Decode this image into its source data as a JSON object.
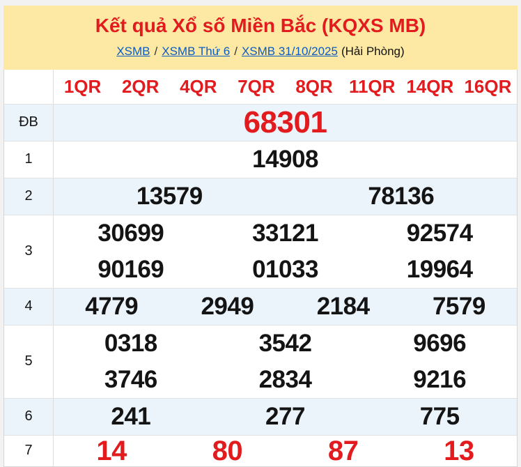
{
  "colors": {
    "accent_red": "#E21B1E",
    "header_bg": "#FDE9A4",
    "row_highlight": "#EBF3FB",
    "link_blue": "#0B5BC4"
  },
  "header": {
    "title": "Kết quả Xổ số Miền Bắc (KQXS MB)",
    "separator": "/",
    "breadcrumb": [
      {
        "label": "XSMB"
      },
      {
        "label": "XSMB Thứ 6"
      },
      {
        "label": "XSMB 31/10/2025"
      }
    ],
    "region_note": "(Hải Phòng)"
  },
  "table": {
    "column_headers": [
      "1QR",
      "2QR",
      "4QR",
      "7QR",
      "8QR",
      "11QR",
      "14QR",
      "16QR"
    ],
    "rows": [
      {
        "label": "ĐB",
        "highlight": true,
        "red": true,
        "size": "xl",
        "lines": [
          [
            "68301"
          ]
        ]
      },
      {
        "label": "1",
        "highlight": false,
        "red": false,
        "size": "",
        "lines": [
          [
            "14908"
          ]
        ]
      },
      {
        "label": "2",
        "highlight": true,
        "red": false,
        "size": "",
        "lines": [
          [
            "13579",
            "78136"
          ]
        ]
      },
      {
        "label": "3",
        "highlight": false,
        "red": false,
        "size": "",
        "lines": [
          [
            "30699",
            "33121",
            "92574"
          ],
          [
            "90169",
            "01033",
            "19964"
          ]
        ]
      },
      {
        "label": "4",
        "highlight": true,
        "red": false,
        "size": "",
        "lines": [
          [
            "4779",
            "2949",
            "2184",
            "7579"
          ]
        ]
      },
      {
        "label": "5",
        "highlight": false,
        "red": false,
        "size": "",
        "lines": [
          [
            "0318",
            "3542",
            "9696"
          ],
          [
            "3746",
            "2834",
            "9216"
          ]
        ]
      },
      {
        "label": "6",
        "highlight": true,
        "red": false,
        "size": "",
        "lines": [
          [
            "241",
            "277",
            "775"
          ]
        ]
      },
      {
        "label": "7",
        "highlight": false,
        "red": true,
        "size": "lg",
        "lines": [
          [
            "14",
            "80",
            "87",
            "13"
          ]
        ]
      }
    ]
  }
}
